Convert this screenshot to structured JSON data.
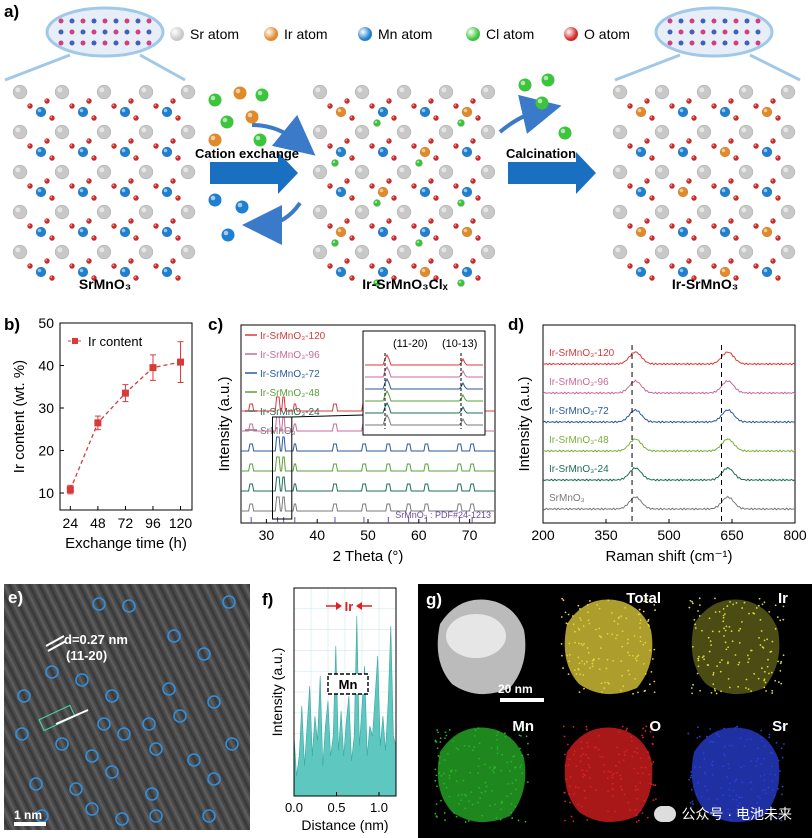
{
  "panel_a": {
    "label": "a)",
    "legend": [
      {
        "name": "Sr atom",
        "color": "#c8c8c8"
      },
      {
        "name": "Ir atom",
        "color": "#e08a2a"
      },
      {
        "name": "Mn atom",
        "color": "#1f7fd0"
      },
      {
        "name": "Cl atom",
        "color": "#3cc43c"
      },
      {
        "name": "O atom",
        "color": "#d22a2a"
      }
    ],
    "crystals": [
      "SrMnO₃",
      "Ir-SrMnO₃Clₓ",
      "Ir-SrMnO₃"
    ],
    "step1": "Cation exchange",
    "step2": "Calcination"
  },
  "panel_b": {
    "label": "b)",
    "legend": "Ir content",
    "chart_data": {
      "type": "scatter",
      "title": "",
      "xlabel": "Exchange time (h)",
      "ylabel": "Ir content (wt. %)",
      "x": [
        24,
        48,
        72,
        96,
        120
      ],
      "y": [
        10.8,
        26.5,
        33.5,
        39.5,
        40.8
      ],
      "err": [
        1.0,
        1.6,
        2.0,
        3.0,
        4.8
      ],
      "xticks": [
        "24",
        "48",
        "72",
        "96",
        "120"
      ],
      "yticks": [
        "10",
        "20",
        "30",
        "40",
        "50"
      ],
      "xlim": [
        15,
        130
      ],
      "ylim": [
        6,
        50
      ]
    }
  },
  "panel_c": {
    "label": "c)",
    "chart_data": {
      "type": "line",
      "xlabel": "2 Theta (°)",
      "ylabel": "Intensity (a.u.)",
      "xticks": [
        "30",
        "40",
        "50",
        "60",
        "70"
      ],
      "xlim": [
        25,
        75
      ],
      "series": [
        {
          "name": "SrMnO₃",
          "color": "#7a7a7a"
        },
        {
          "name": "Ir-SrMnO₃-24",
          "color": "#1c6e5a"
        },
        {
          "name": "Ir-SrMnO₃-48",
          "color": "#5aa03a"
        },
        {
          "name": "Ir-SrMnO₃-72",
          "color": "#2a5a9a"
        },
        {
          "name": "Ir-SrMnO₃-96",
          "color": "#c86a9a"
        },
        {
          "name": "Ir-SrMnO₃-120",
          "color": "#d83a3a"
        }
      ],
      "peaks": [
        27.0,
        32.2,
        33.4,
        35.6,
        43.5,
        49.2,
        54.0,
        58.0,
        61.5,
        68.0,
        70.5
      ],
      "reference": "SrMnO₃ : PDF#24-1213",
      "inset_labels": [
        "(11-20)",
        "(10-13)"
      ]
    }
  },
  "panel_d": {
    "label": "d)",
    "chart_data": {
      "type": "line",
      "xlabel": "Raman shift (cm⁻¹)",
      "ylabel": "Intensity (a.u.)",
      "xticks": [
        "200",
        "350",
        "500",
        "650",
        "800"
      ],
      "xlim": [
        200,
        800
      ],
      "series": [
        {
          "name": "SrMnO₃",
          "color": "#7a7a7a"
        },
        {
          "name": "Ir-SrMnO₃-24",
          "color": "#1c6e5a"
        },
        {
          "name": "Ir-SrMnO₃-48",
          "color": "#7ab03a"
        },
        {
          "name": "Ir-SrMnO₃-72",
          "color": "#2a5a9a"
        },
        {
          "name": "Ir-SrMnO₃-96",
          "color": "#c86a9a"
        },
        {
          "name": "Ir-SrMnO₃-120",
          "color": "#d83a3a"
        }
      ],
      "peaks": [
        420,
        640
      ],
      "dashed_lines": [
        412,
        625
      ]
    }
  },
  "panel_e": {
    "label": "e)",
    "d_spacing": "d=0.27 nm",
    "plane": "(11-20)",
    "scale": "1 nm"
  },
  "panel_f": {
    "label": "f)",
    "top_label": "Ir",
    "box_label": "Mn",
    "chart_data": {
      "type": "line",
      "xlabel": "Distance (nm)",
      "ylabel": "Intensity (a.u.)",
      "xticks": [
        "0.0",
        "0.5",
        "1.0"
      ],
      "xlim": [
        0,
        1.2
      ]
    }
  },
  "panel_g": {
    "label": "g)",
    "scale": "20 nm",
    "maps": [
      {
        "name": "",
        "color": "#ffffff"
      },
      {
        "name": "Total",
        "color": "#e6d23c"
      },
      {
        "name": "Ir",
        "color": "#d8d83a"
      },
      {
        "name": "Mn",
        "color": "#28b428"
      },
      {
        "name": "O",
        "color": "#e02020"
      },
      {
        "name": "Sr",
        "color": "#2840d8"
      }
    ],
    "watermark": "公众号 · 电池未来"
  }
}
